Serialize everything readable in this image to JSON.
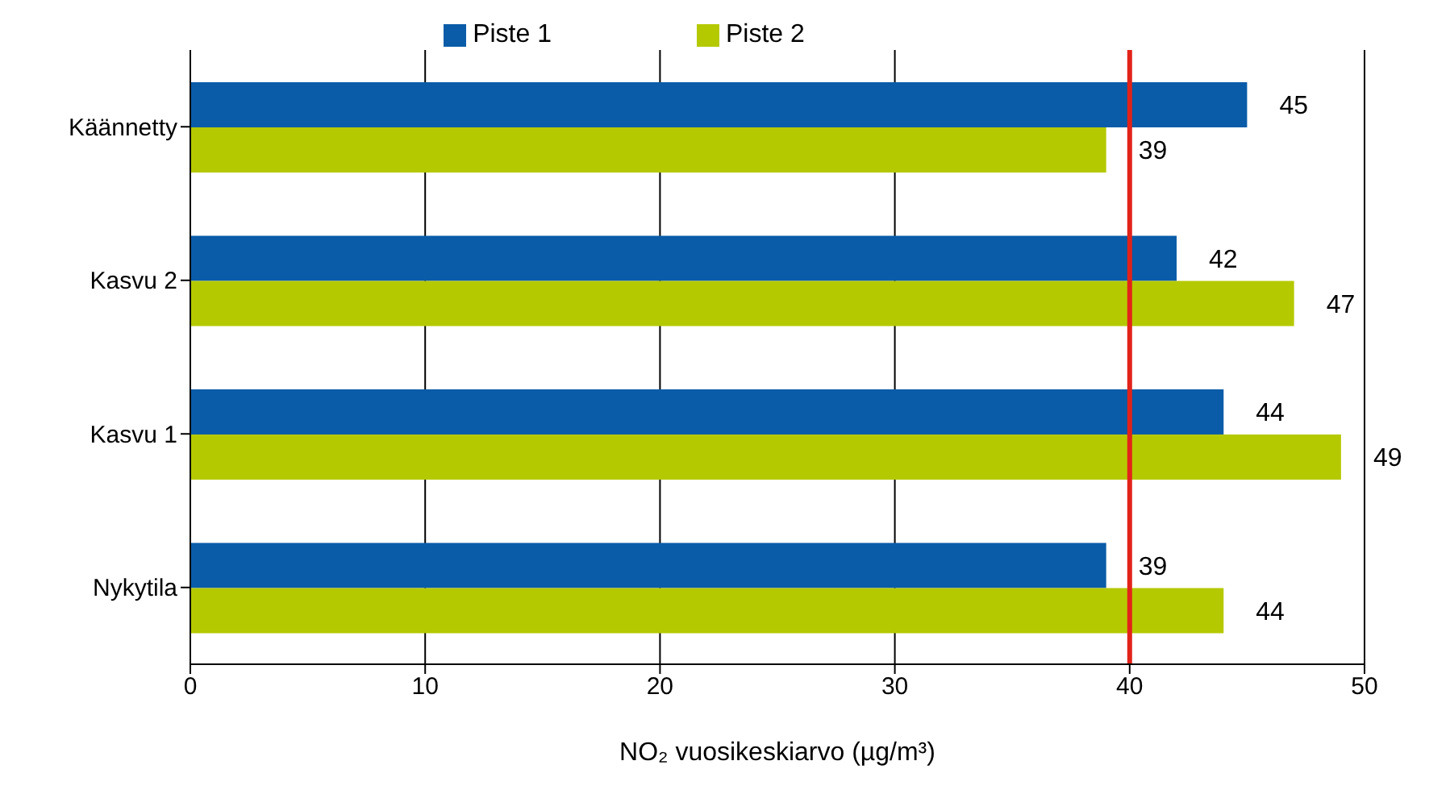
{
  "chart_data": {
    "type": "bar",
    "orientation": "horizontal",
    "categories": [
      "Käännetty",
      "Kasvu 2",
      "Kasvu 1",
      "Nykytila"
    ],
    "series": [
      {
        "name": "Piste 1",
        "color": "#0a5ca8",
        "values": [
          45,
          42,
          44,
          39
        ]
      },
      {
        "name": "Piste 2",
        "color": "#b5c900",
        "values": [
          39,
          47,
          49,
          44
        ]
      }
    ],
    "xlabel": "NO₂ vuosikeskiarvo (µg/m³)",
    "xlim": [
      0,
      50
    ],
    "xticks": [
      0,
      10,
      20,
      30,
      40,
      50
    ],
    "grid": "x",
    "legend": "top",
    "data_labels": true,
    "ref_lines": [
      {
        "axis": "x",
        "value": 40,
        "color": "#e2231a"
      }
    ]
  }
}
